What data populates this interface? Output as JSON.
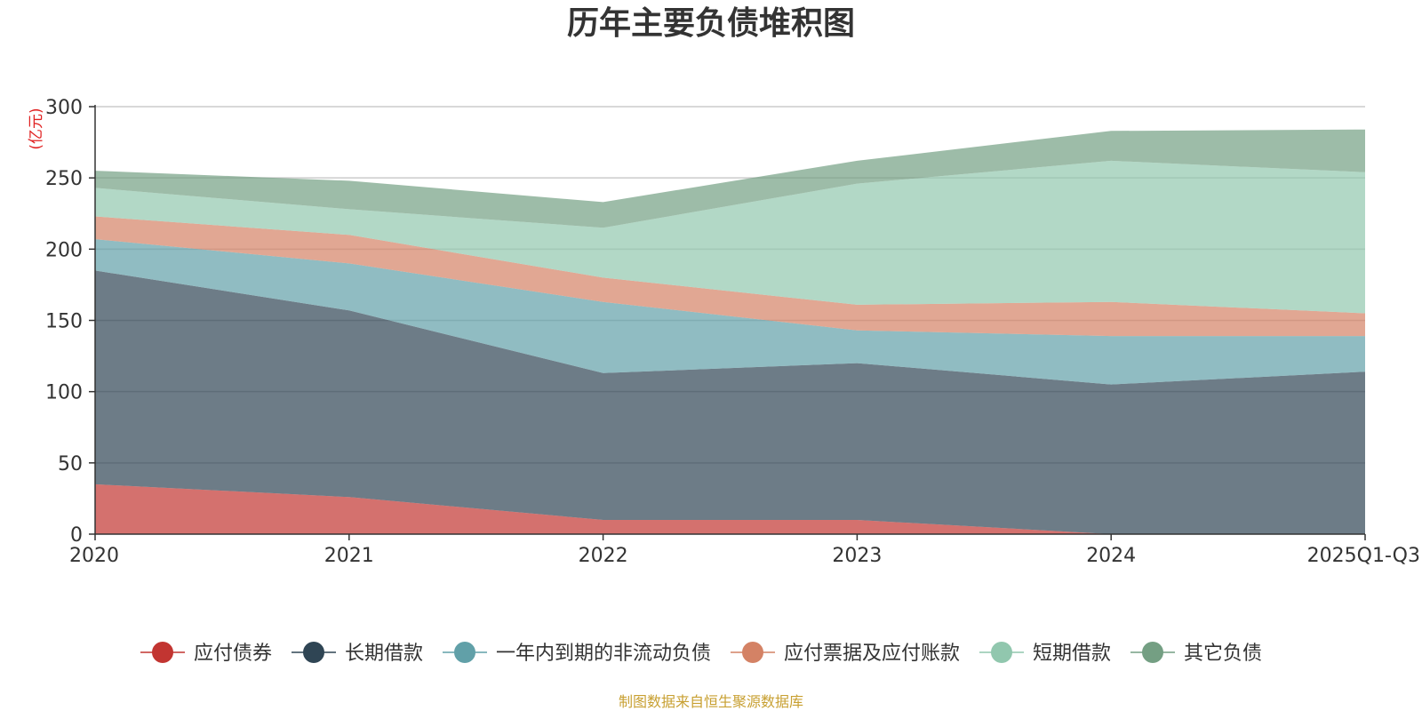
{
  "chart_data": {
    "type": "area",
    "stacked": true,
    "title": "历年主要负债堆积图",
    "unit_label": "(亿元)",
    "source_note": "制图数据来自恒生聚源数据库",
    "categories": [
      "2020",
      "2021",
      "2022",
      "2023",
      "2024",
      "2025Q1-Q3"
    ],
    "ylim": [
      0,
      300
    ],
    "yticks": [
      0,
      50,
      100,
      150,
      200,
      250,
      300
    ],
    "grid": true,
    "legend_position": "bottom",
    "series": [
      {
        "name": "应付债券",
        "color": "#c23531",
        "values": [
          35,
          26,
          10,
          10,
          0,
          0
        ]
      },
      {
        "name": "长期借款",
        "color": "#2f4554",
        "values": [
          150,
          131,
          103,
          110,
          105,
          114
        ]
      },
      {
        "name": "一年内到期的非流动负债",
        "color": "#61a0a8",
        "values": [
          22,
          33,
          50,
          23,
          34,
          25
        ]
      },
      {
        "name": "应付票据及应付账款",
        "color": "#d48265",
        "values": [
          16,
          20,
          17,
          18,
          24,
          16
        ]
      },
      {
        "name": "短期借款",
        "color": "#91c7ae",
        "values": [
          20,
          18,
          35,
          85,
          99,
          99
        ]
      },
      {
        "name": "其它负债",
        "color": "#749f83",
        "values": [
          12,
          20,
          18,
          16,
          21,
          30
        ]
      }
    ]
  }
}
